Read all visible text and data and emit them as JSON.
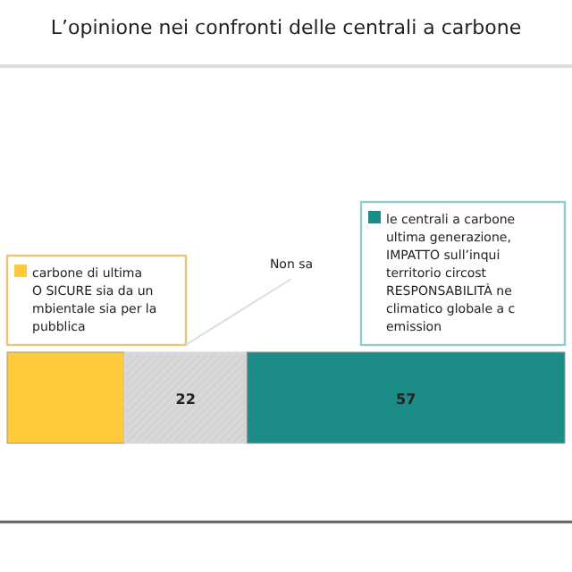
{
  "chart_data": {
    "type": "bar",
    "title": "L’opinione nei confronti delle centrali a carbone",
    "categories": [
      null
    ],
    "stacked": true,
    "orientation": "horizontal",
    "xlim": [
      0,
      100
    ],
    "series": [
      {
        "name": "carbone di ultima\nO SICURE sia da un\nmbientale sia per la\npubblica",
        "color": "#ffca3a",
        "values": [
          21
        ],
        "value_labels": [
          null
        ]
      },
      {
        "name": "Non sa",
        "color": "#d8d8d8",
        "values": [
          22
        ],
        "value_labels": [
          "22"
        ]
      },
      {
        "name": "le centrali a carbone\nultima generazione,\nIMPATTO sull’inqui\nterritorio circost\nRESPONSABILITÀ ne\nclimatico globale a c\nemission",
        "color": "#1b8d86",
        "values": [
          57
        ],
        "value_labels": [
          "57"
        ]
      }
    ]
  }
}
